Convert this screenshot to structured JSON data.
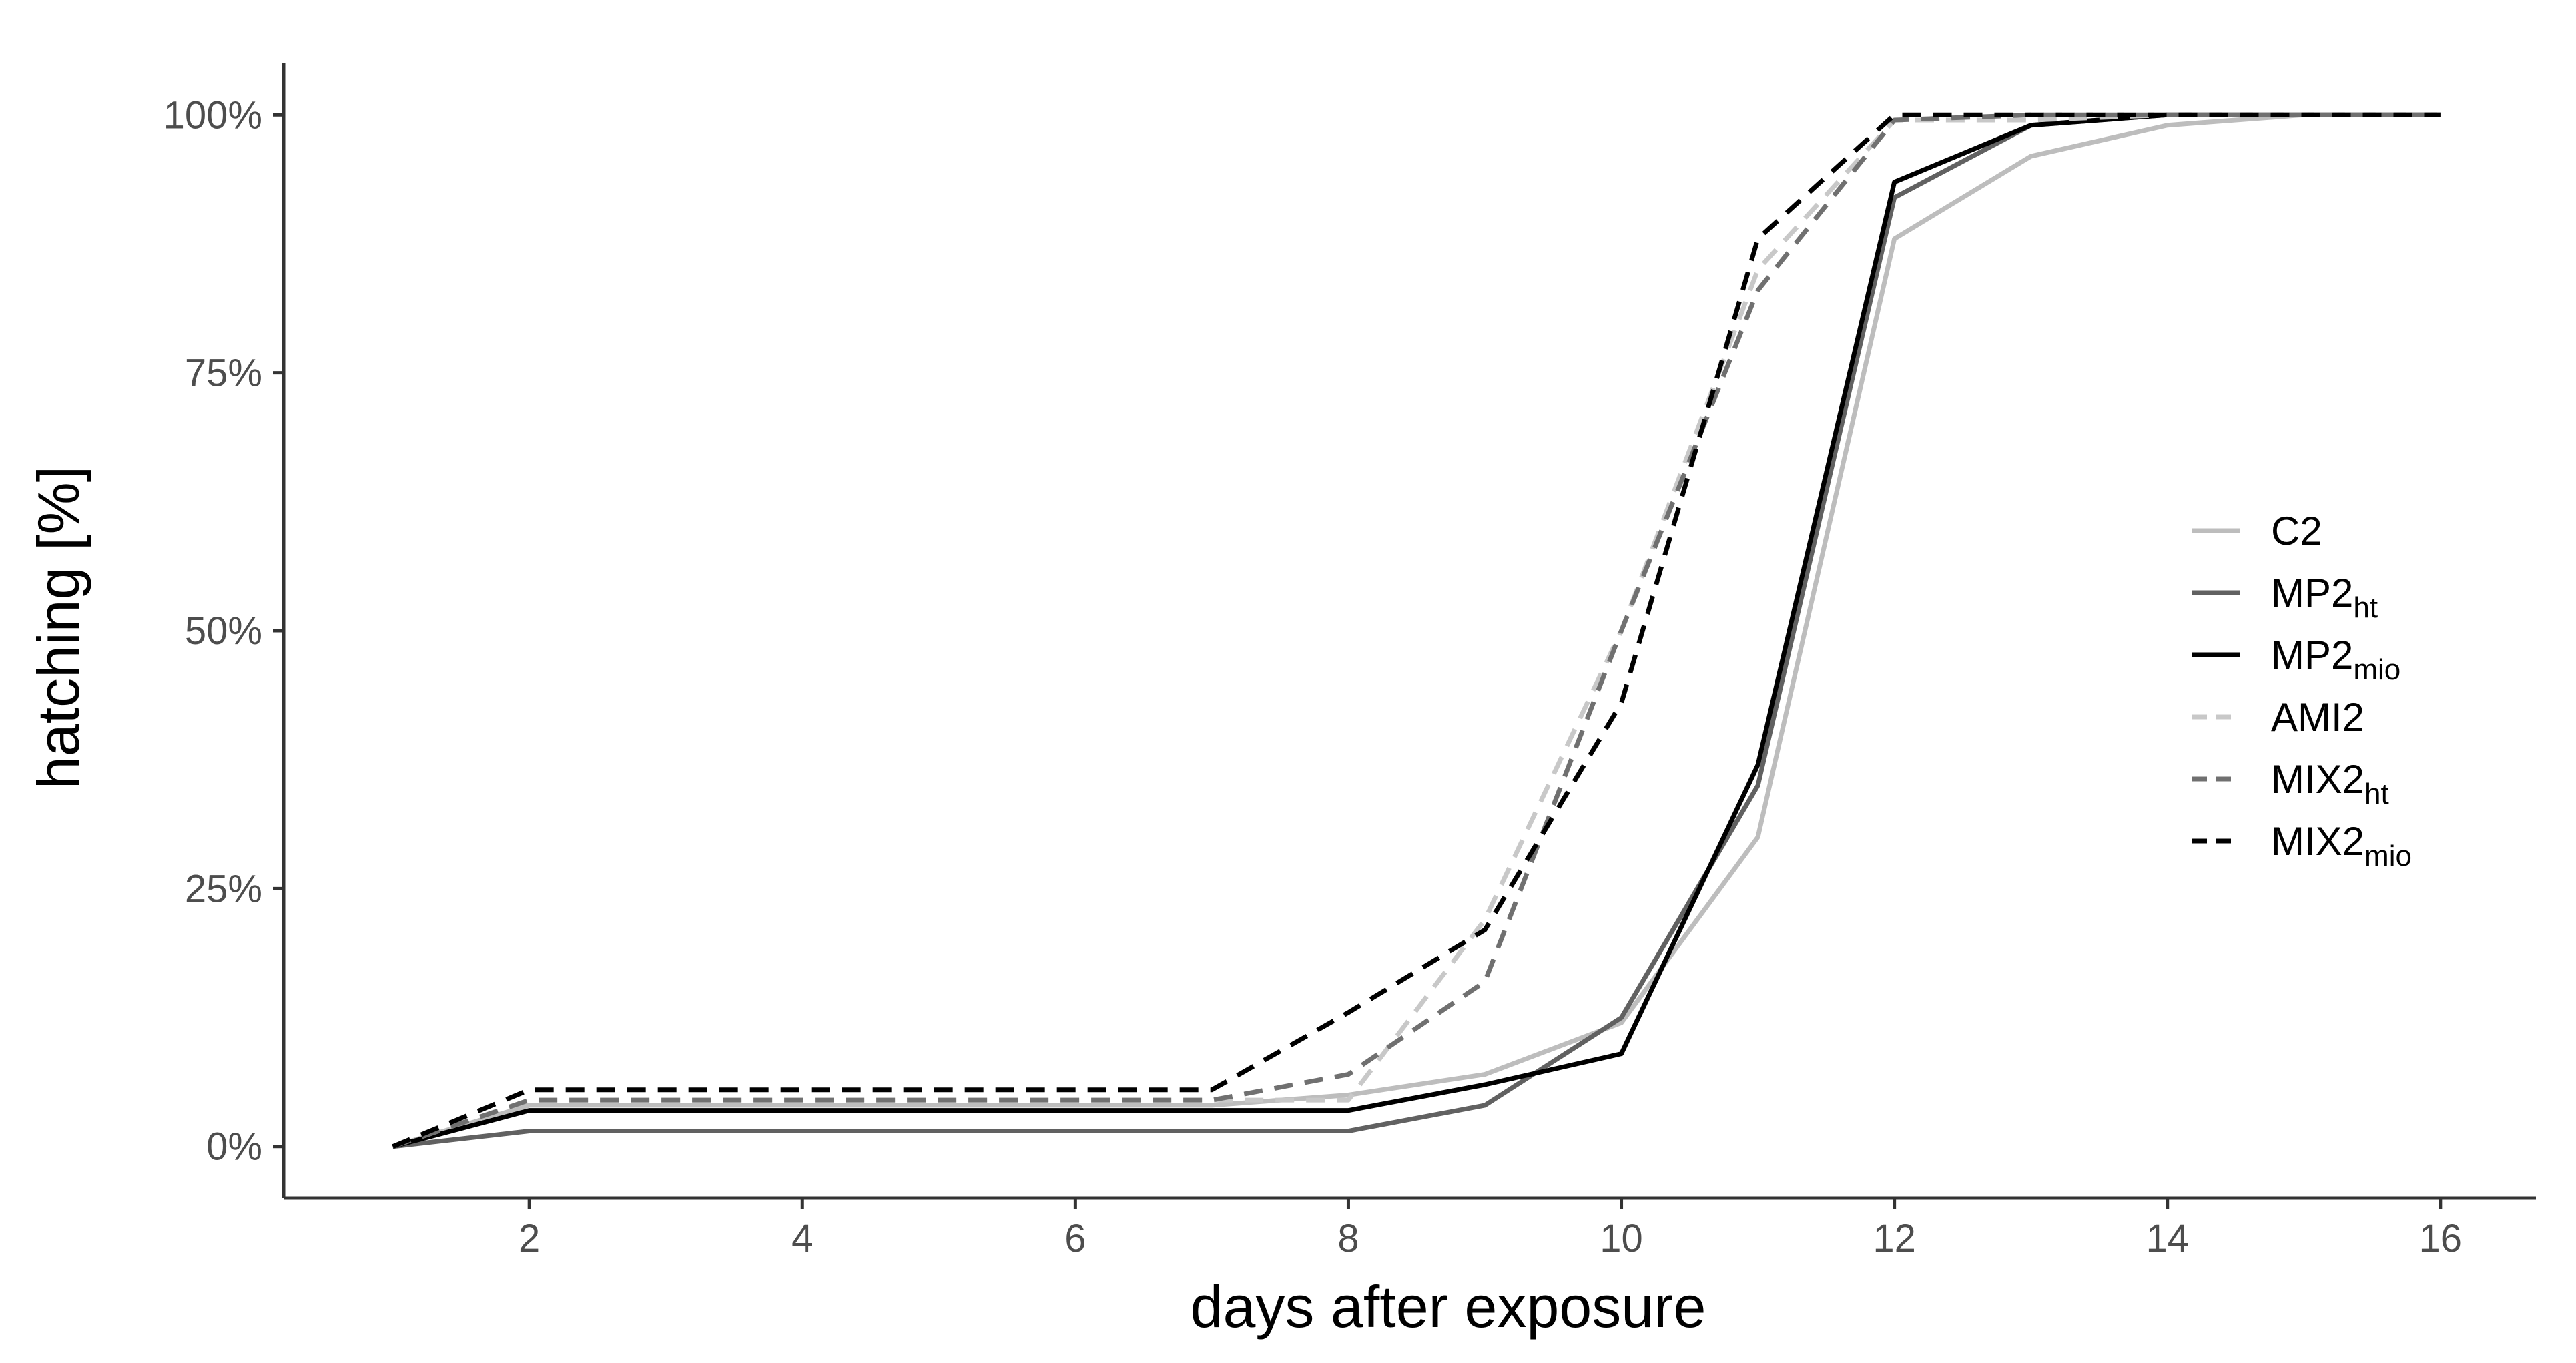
{
  "chart_data": {
    "type": "line",
    "xlabel": "days after exposure",
    "ylabel": "hatching [%]",
    "xlim": [
      0.2,
      16.7
    ],
    "ylim": [
      -5,
      105
    ],
    "x_ticks": [
      2,
      4,
      6,
      8,
      10,
      12,
      14,
      16
    ],
    "y_ticks": [
      {
        "value": 0,
        "label": "0%"
      },
      {
        "value": 25,
        "label": "25%"
      },
      {
        "value": 50,
        "label": "50%"
      },
      {
        "value": 75,
        "label": "75%"
      },
      {
        "value": 100,
        "label": "100%"
      }
    ],
    "grid": false,
    "legend_position": "right",
    "x": [
      1,
      2,
      3,
      4,
      5,
      6,
      7,
      8,
      9,
      10,
      11,
      12,
      13,
      14,
      15,
      16
    ],
    "series": [
      {
        "name": "C2",
        "sub": "",
        "color": "#bdbdbd",
        "dash": "solid",
        "values": [
          0,
          4,
          4,
          4,
          4,
          4,
          4,
          5,
          7,
          12,
          30,
          88,
          96,
          99,
          100,
          100
        ]
      },
      {
        "name": "MP2",
        "sub": "ht",
        "color": "#616161",
        "dash": "solid",
        "values": [
          0,
          1.5,
          1.5,
          1.5,
          1.5,
          1.5,
          1.5,
          1.5,
          4,
          12.5,
          35,
          92,
          99,
          100,
          100,
          100
        ]
      },
      {
        "name": "MP2",
        "sub": "mio",
        "color": "#000000",
        "dash": "solid",
        "values": [
          0,
          3.5,
          3.5,
          3.5,
          3.5,
          3.5,
          3.5,
          3.5,
          6,
          9,
          37,
          93.5,
          99,
          100,
          100,
          100
        ]
      },
      {
        "name": "AMI2",
        "sub": "",
        "color": "#c8c8c8",
        "dash": "dashed",
        "values": [
          0,
          4.5,
          4.5,
          4.5,
          4.5,
          4.5,
          4.5,
          4.5,
          22,
          50,
          85,
          99.5,
          99.5,
          100,
          100,
          100
        ]
      },
      {
        "name": "MIX2",
        "sub": "ht",
        "color": "#707070",
        "dash": "dashed",
        "values": [
          0,
          4.5,
          4.5,
          4.5,
          4.5,
          4.5,
          4.5,
          7,
          16,
          50,
          83,
          99.5,
          100,
          100,
          100,
          100
        ]
      },
      {
        "name": "MIX2",
        "sub": "mio",
        "color": "#000000",
        "dash": "dashed",
        "values": [
          0,
          5.5,
          5.5,
          5.5,
          5.5,
          5.5,
          5.5,
          13,
          21,
          43,
          88,
          100,
          100,
          100,
          100,
          100
        ]
      }
    ]
  }
}
